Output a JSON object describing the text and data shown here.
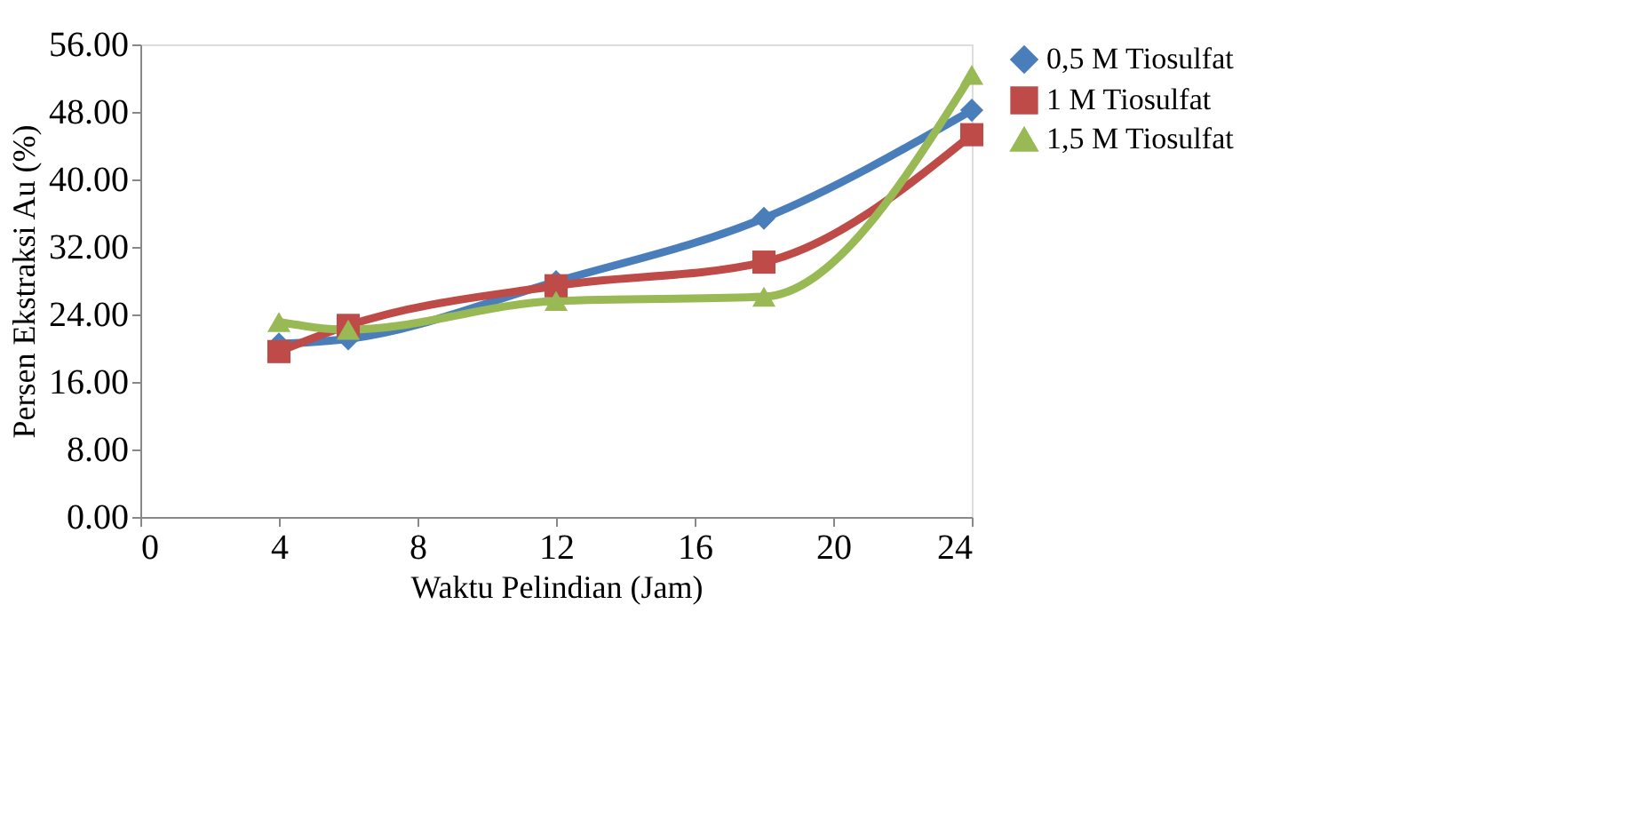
{
  "chart_data": {
    "type": "line",
    "xlabel": "Waktu Pelindian (Jam)",
    "ylabel": "Persen Ekstraksi Au (%)",
    "x": [
      4,
      6,
      12,
      18,
      24
    ],
    "series": [
      {
        "name": "0,5 M Tiosulfat",
        "color": "#4a7ebb",
        "marker": "diamond",
        "values": [
          20.5,
          21.1,
          27.9,
          35.4,
          48.2
        ]
      },
      {
        "name": "1 M Tiosulfat",
        "color": "#be4b48",
        "marker": "square",
        "values": [
          19.6,
          22.7,
          27.4,
          30.2,
          45.3
        ]
      },
      {
        "name": "1,5 M Tiosulfat",
        "color": "#98b954",
        "marker": "triangle",
        "values": [
          23.1,
          22.2,
          25.6,
          26.1,
          52.4
        ]
      }
    ],
    "xlim": [
      0,
      24
    ],
    "xticks": [
      0,
      4,
      8,
      12,
      16,
      20,
      24
    ],
    "ylim": [
      0,
      56
    ],
    "yticks": [
      {
        "value": 0,
        "label": "0.00"
      },
      {
        "value": 8,
        "label": "8.00"
      },
      {
        "value": 16,
        "label": "16.00"
      },
      {
        "value": 24,
        "label": "24.00"
      },
      {
        "value": 32,
        "label": "32.00"
      },
      {
        "value": 40,
        "label": "40.00"
      },
      {
        "value": 48,
        "label": "48.00"
      },
      {
        "value": 56,
        "label": "56.00"
      }
    ],
    "grid": false,
    "legend": "right",
    "line_style": "solid"
  }
}
